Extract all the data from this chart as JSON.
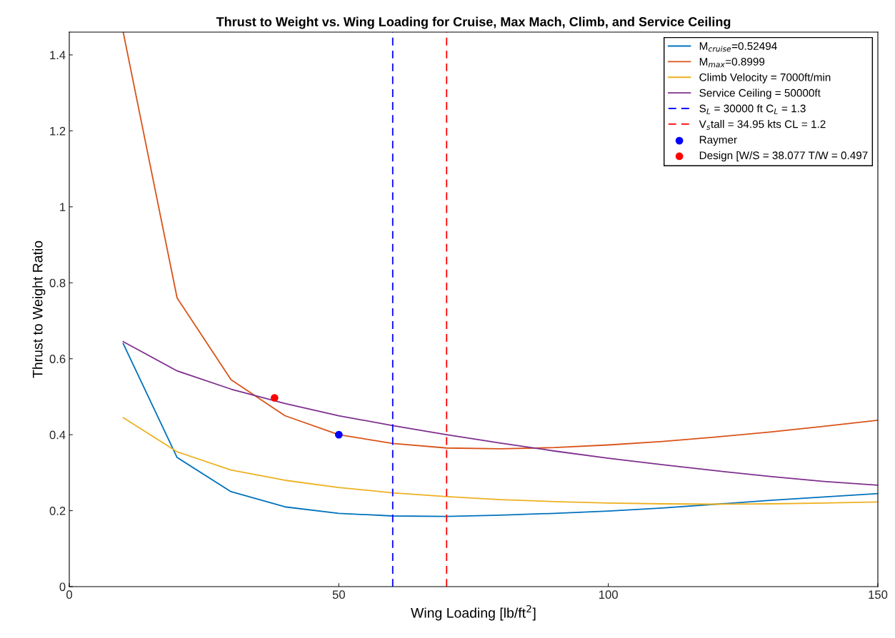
{
  "chart_data": {
    "type": "line",
    "title": "Thrust to Weight vs. Wing Loading for Cruise, Max Mach, Climb, and Service Ceiling",
    "xlabel": "Wing Loading [lb/ft$^{2}$]",
    "ylabel": "Thrust to Weight Ratio",
    "xlim": [
      0,
      150
    ],
    "ylim": [
      0,
      1.46
    ],
    "xticks": [
      0,
      50,
      100,
      150
    ],
    "yticks": [
      0,
      0.2,
      0.4,
      0.6,
      0.8,
      1,
      1.2,
      1.4
    ],
    "grid": false,
    "legend": "top right",
    "marker": "none",
    "series": [
      {
        "name": "M$_{cruise}$=0.52494",
        "color": "#0072bd",
        "x": [
          10,
          20,
          30,
          40,
          50,
          60,
          70,
          80,
          90,
          100,
          110,
          120,
          130,
          140,
          150
        ],
        "values": [
          0.64,
          0.34,
          0.25,
          0.21,
          0.193,
          0.186,
          0.185,
          0.188,
          0.193,
          0.199,
          0.207,
          0.217,
          0.227,
          0.236,
          0.245
        ]
      },
      {
        "name": "M$_{max}$=0.8999",
        "color": "#d95319",
        "x": [
          10,
          20,
          30,
          40,
          50,
          60,
          70,
          80,
          90,
          100,
          110,
          120,
          130,
          140,
          150
        ],
        "values": [
          1.46,
          0.76,
          0.545,
          0.45,
          0.4,
          0.377,
          0.365,
          0.363,
          0.366,
          0.373,
          0.382,
          0.394,
          0.407,
          0.422,
          0.438
        ]
      },
      {
        "name": "Climb Velocity = 7000ft/min",
        "color": "#edb120",
        "x": [
          10,
          20,
          30,
          40,
          50,
          60,
          70,
          80,
          90,
          100,
          110,
          120,
          130,
          140,
          150
        ],
        "values": [
          0.445,
          0.355,
          0.307,
          0.28,
          0.261,
          0.247,
          0.237,
          0.229,
          0.224,
          0.22,
          0.218,
          0.217,
          0.218,
          0.22,
          0.223
        ]
      },
      {
        "name": "Service Ceiling = 50000ft",
        "color": "#7e2f8e",
        "x": [
          10,
          20,
          30,
          40,
          50,
          60,
          70,
          80,
          90,
          100,
          110,
          120,
          130,
          140,
          150
        ],
        "values": [
          0.645,
          0.568,
          0.52,
          0.482,
          0.45,
          0.424,
          0.4,
          0.378,
          0.357,
          0.338,
          0.321,
          0.305,
          0.29,
          0.277,
          0.267
        ]
      },
      {
        "name": "S$_{L}$ = 30000 ft C$_{L}$ = 1.3",
        "color": "#0000ff",
        "line_style": "dashed",
        "x": [
          60,
          60
        ],
        "values": [
          0,
          1.46
        ]
      },
      {
        "name": "V$_{s}$tall = 34.95 kts CL = 1.2",
        "color": "#ff0000",
        "line_style": "dashed",
        "x": [
          70,
          70
        ],
        "values": [
          0,
          1.46
        ]
      },
      {
        "name": "Raymer",
        "type": "scatter",
        "marker": "circle",
        "color": "#0000ff",
        "x": [
          50
        ],
        "values": [
          0.4
        ]
      },
      {
        "name": "Design [W/S = 38.077 T/W = 0.497",
        "type": "scatter",
        "marker": "circle",
        "color": "#ff0000",
        "x": [
          38.077
        ],
        "values": [
          0.497
        ]
      }
    ]
  }
}
